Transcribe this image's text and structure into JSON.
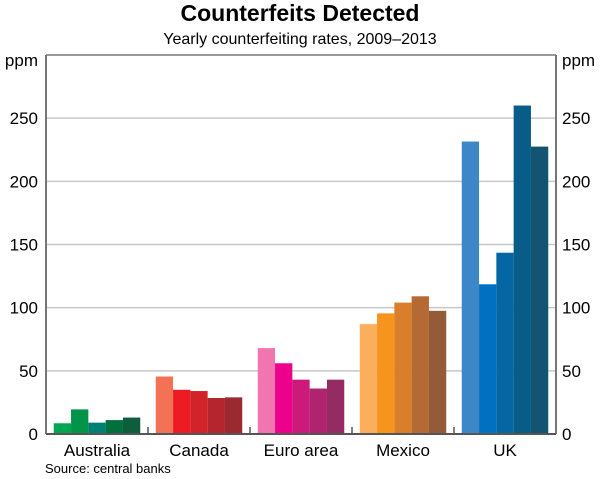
{
  "chart_data": {
    "type": "bar",
    "title": "Counterfeits Detected",
    "subtitle": "Yearly counterfeiting rates, 2009–2013",
    "ylabel_left": "ppm",
    "ylabel_right": "ppm",
    "ylim": [
      0,
      300
    ],
    "yticks": [
      0,
      50,
      100,
      150,
      200,
      250
    ],
    "grid": true,
    "categories": [
      "Australia",
      "Canada",
      "Euro area",
      "Mexico",
      "UK"
    ],
    "years": [
      "2009",
      "2010",
      "2011",
      "2012",
      "2013"
    ],
    "values": [
      [
        8.5,
        19.5,
        9,
        11,
        13
      ],
      [
        45.5,
        35,
        34,
        28.5,
        29
      ],
      [
        68,
        56,
        43,
        36,
        43
      ],
      [
        87,
        95.5,
        104,
        109,
        97.5
      ],
      [
        231.5,
        118.5,
        143.5,
        260,
        227.5
      ]
    ],
    "colors": [
      [
        "#00a651",
        "#009448",
        "#008075",
        "#00703f",
        "#0e5e3e"
      ],
      [
        "#f37155",
        "#ed1c24",
        "#d2232a",
        "#b5252e",
        "#9a2a30"
      ],
      [
        "#f075b0",
        "#ec008c",
        "#cc1a7a",
        "#b0236f",
        "#942b63"
      ],
      [
        "#fbae5c",
        "#f7941d",
        "#d97f2a",
        "#b56a33",
        "#935b37"
      ],
      [
        "#3b87c8",
        "#0070c0",
        "#0566a4",
        "#085d88",
        "#135470"
      ]
    ],
    "source": "Source: central banks"
  }
}
